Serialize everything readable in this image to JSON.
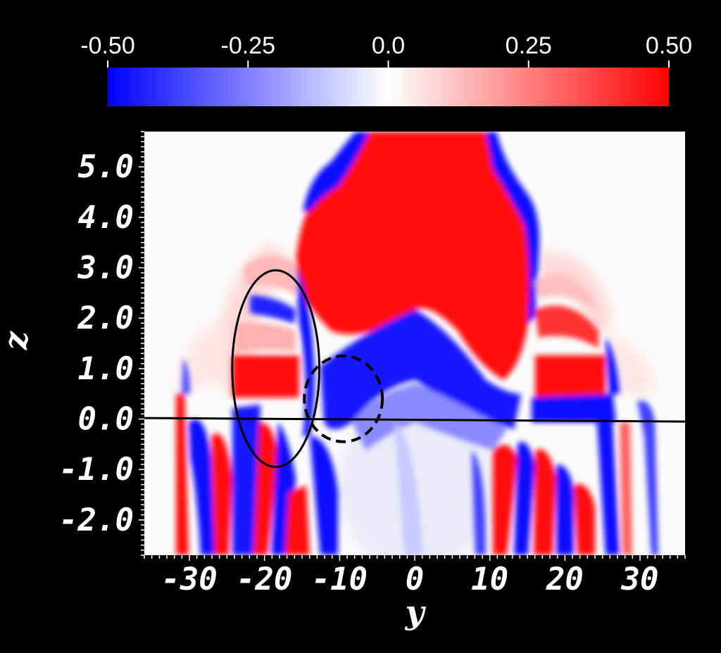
{
  "chart_data": {
    "type": "heatmap",
    "xlabel": "y",
    "ylabel": "z",
    "xlim": [
      -36,
      36
    ],
    "ylim": [
      -2.7,
      5.7
    ],
    "x_ticks": [
      -30,
      -20,
      -10,
      0,
      10,
      20,
      30
    ],
    "x_tick_labels": [
      "-30",
      "-20",
      "-10",
      "0",
      "10",
      "20",
      "30"
    ],
    "y_ticks": [
      5.0,
      4.0,
      3.0,
      2.0,
      1.0,
      0.0,
      -1.0,
      -2.0
    ],
    "y_tick_labels": [
      "5.0",
      "4.0",
      "3.0",
      "2.0",
      "1.0",
      "0.0",
      "-1.0",
      "-2.0"
    ],
    "colorbar": {
      "range": [
        -0.5,
        0.5
      ],
      "ticks": [
        -0.5,
        -0.25,
        0.0,
        0.25,
        0.5
      ],
      "tick_labels": [
        "-0.50",
        "-0.25",
        "0.0",
        "0.25",
        "0.50"
      ],
      "colors": {
        "min": "#0000ff",
        "mid": "#ffffff",
        "max": "#ff0000"
      },
      "placement": "top"
    },
    "field_regions": [
      {
        "sign": "positive",
        "description_points": [
          [
            -9,
            4.5
          ],
          [
            0,
            5.4
          ],
          [
            8,
            4.2
          ],
          [
            5,
            3.0
          ],
          [
            0,
            2.5
          ],
          [
            -6,
            3.2
          ],
          [
            -13,
            3.3
          ]
        ]
      },
      {
        "sign": "positive",
        "points": [
          [
            -24,
            1.2
          ],
          [
            -14,
            1.2
          ]
        ]
      },
      {
        "sign": "positive",
        "points": [
          [
            17,
            1.2
          ],
          [
            25,
            1.2
          ]
        ]
      },
      {
        "sign": "negative",
        "points": [
          [
            -5,
            0.9
          ],
          [
            3,
            1.3
          ],
          [
            12,
            0.2
          ]
        ]
      },
      {
        "sign": "negative",
        "points": [
          [
            -10,
            4.8
          ],
          [
            11,
            4.8
          ]
        ]
      }
    ],
    "overlays": [
      {
        "kind": "line",
        "style": "solid",
        "points": [
          [
            -36,
            0.02
          ],
          [
            36,
            -0.05
          ]
        ]
      },
      {
        "kind": "ellipse",
        "style": "solid",
        "center": [
          -18.5,
          1.0
        ],
        "radius_y_units": 5.8,
        "radius_z_units": 1.95
      },
      {
        "kind": "ellipse",
        "style": "dashed",
        "center": [
          -9.5,
          0.4
        ],
        "radius_y_units": 5.2,
        "radius_z_units": 0.85
      }
    ]
  }
}
